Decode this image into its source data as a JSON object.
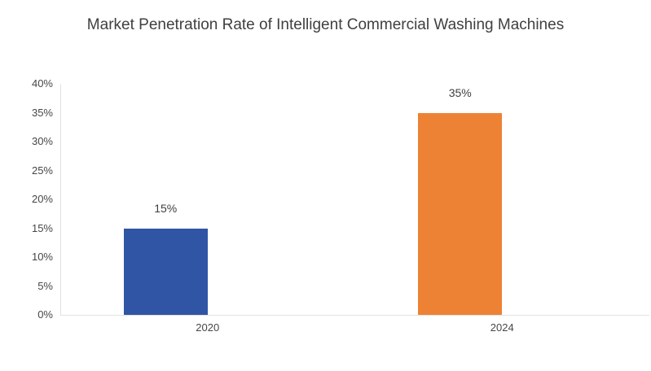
{
  "chart_data": {
    "type": "bar",
    "title": "Market Penetration Rate of Intelligent Commercial Washing Machines",
    "categories": [
      "2020",
      "2024"
    ],
    "values": [
      15,
      35
    ],
    "data_labels": [
      "15%",
      "35%"
    ],
    "bar_colors": [
      "#2F55A4",
      "#EE8234"
    ],
    "xlabel": "",
    "ylabel": "",
    "ylim": [
      0,
      40
    ],
    "ytick_step": 5,
    "ytick_labels": [
      "0%",
      "5%",
      "10%",
      "15%",
      "20%",
      "25%",
      "30%",
      "35%",
      "40%"
    ],
    "grid": false,
    "legend_position": "none",
    "colors": {
      "background": "#FFFFFF",
      "axis_line": "#E2E2E2",
      "title_text": "#404040",
      "tick_text": "#464646",
      "data_label_text": "#3F3F3F"
    }
  }
}
